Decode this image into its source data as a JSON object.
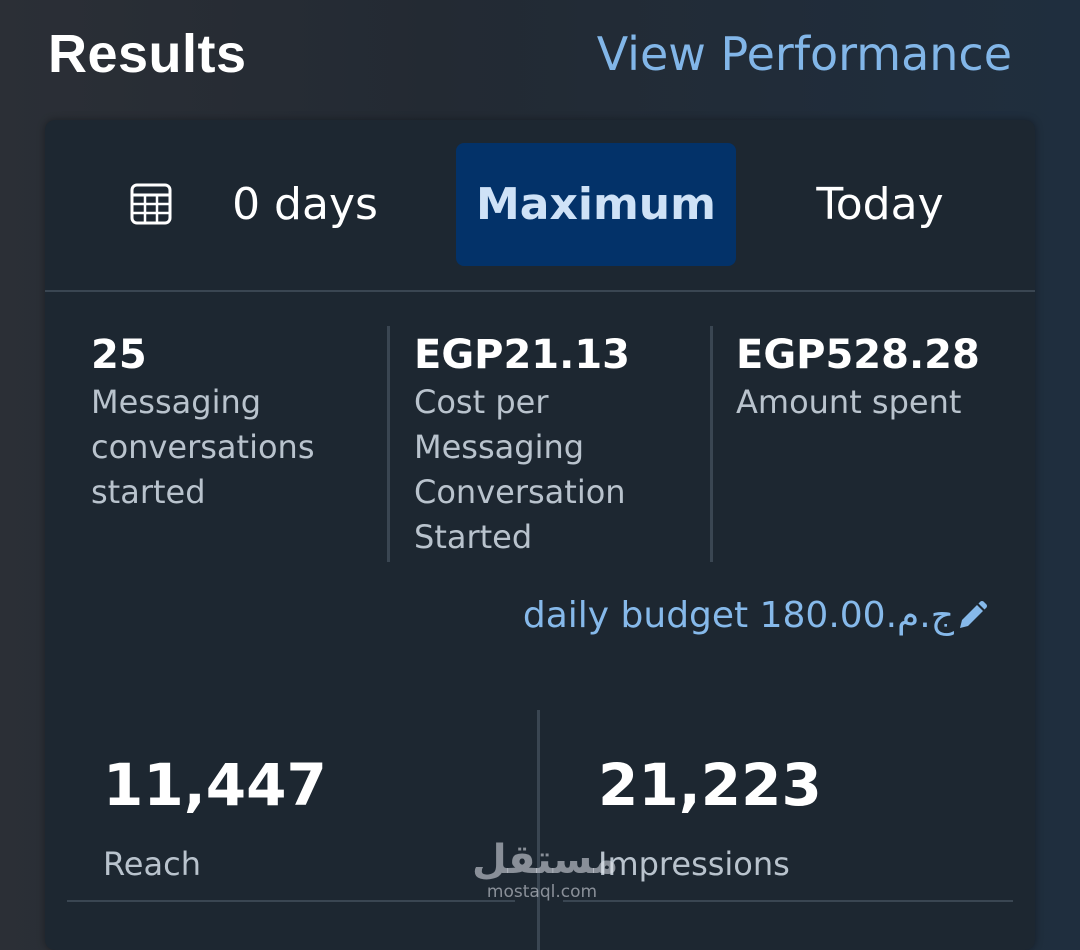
{
  "header": {
    "title": "Results",
    "view_link": "View Performance"
  },
  "tabs": {
    "days_label": "0 days",
    "maximum_label": "Maximum",
    "today_label": "Today",
    "selected": "Maximum"
  },
  "metrics": [
    {
      "value": "25",
      "label": "Messaging conversations started"
    },
    {
      "value": "EGP21.13",
      "label": "Cost per Messaging Conversation Started"
    },
    {
      "value": "EGP528.28",
      "label": "Amount spent"
    }
  ],
  "budget": {
    "text": "daily budget 180.00ج.م.‏"
  },
  "stats": [
    {
      "value": "11,447",
      "label": "Reach"
    },
    {
      "value": "21,223",
      "label": "Impressions"
    }
  ],
  "watermark": {
    "arabic": "مستقل",
    "latin": "mostaql.com"
  },
  "colors": {
    "accent": "#82b6e8",
    "selected_tab": "#033269",
    "card": "#1d2731"
  },
  "icons": [
    "calendar-icon",
    "pencil-icon"
  ]
}
